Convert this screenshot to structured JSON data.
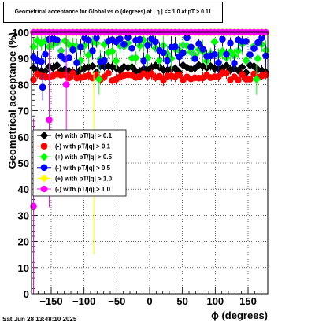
{
  "chart_data": {
    "type": "scatter",
    "title": "Geometrical acceptance for Global vs ϕ (degrees) at | η | <= 1.0 at pT > 0.11",
    "xlabel": "ϕ (degrees)",
    "ylabel": "Geometrical acceptance (%)",
    "xlim": [
      -180,
      180
    ],
    "ylim": [
      0,
      100
    ],
    "x_ticks": [
      -150,
      -100,
      -50,
      0,
      50,
      100,
      150
    ],
    "x_tick_labels": [
      "−150",
      "−100",
      "−50",
      "0",
      "50",
      "100",
      "150"
    ],
    "y_ticks": [
      0,
      10,
      20,
      30,
      40,
      50,
      60,
      70,
      80,
      90,
      100
    ],
    "grid": true,
    "legend_position": "middle-left",
    "series": [
      {
        "name": "(+) with pT/|q| > 0.1",
        "color": "#000000",
        "base": 86,
        "spread": 1.5,
        "err": 1.5,
        "seed": 11
      },
      {
        "name": "(-) with pT/|q| > 0.1",
        "color": "#ff0000",
        "base": 83,
        "spread": 1.5,
        "err": 1.5,
        "seed": 23
      },
      {
        "name": "(+) with pT/|q| > 0.5",
        "color": "#00ff00",
        "base": 93,
        "spread": 4,
        "err": 3,
        "seed": 37
      },
      {
        "name": "(-) with pT/|q| > 0.5",
        "color": "#0000ff",
        "base": 93,
        "spread": 5,
        "err": 3,
        "seed": 51
      },
      {
        "name": "(+) with pT/|q| > 1.0",
        "color": "#ffff00",
        "base": 100,
        "spread": 0,
        "err": 0,
        "seed": 67
      },
      {
        "name": "(-) with pT/|q| > 1.0",
        "color": "#ff00ff",
        "base": 100,
        "spread": 0,
        "err": 0,
        "seed": 79
      }
    ],
    "special_points": {
      "(-) with pT/|q| > 1.0": [
        {
          "x": -177,
          "y": 33.5,
          "err": 33.5
        },
        {
          "x": -153,
          "y": 66.5,
          "err": 33.5
        },
        {
          "x": -127,
          "y": 80,
          "err": 20
        }
      ],
      "(+) with pT/|q| > 1.0": [
        {
          "x": -85,
          "y": 50,
          "err": 35
        }
      ],
      "(-) with pT/|q| > 0.5": [
        {
          "x": -163,
          "y": 79,
          "err": 5
        }
      ],
      "(+) with pT/|q| > 0.5": [
        {
          "x": -77,
          "y": 82,
          "err": 6
        },
        {
          "x": 163,
          "y": 82,
          "err": 6
        }
      ]
    }
  },
  "footer": {
    "timestamp": "Sat Jun 28 13:48:10 2025"
  }
}
